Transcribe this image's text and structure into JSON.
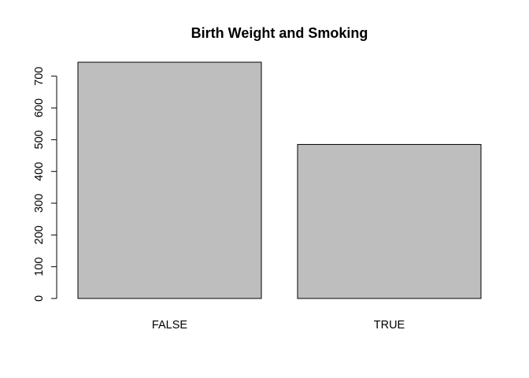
{
  "chart_data": {
    "type": "bar",
    "title": "Birth Weight and Smoking",
    "xlabel": "",
    "ylabel": "",
    "categories": [
      "FALSE",
      "TRUE"
    ],
    "values": [
      744,
      485
    ],
    "ylim": [
      0,
      744
    ],
    "yticks": [
      0,
      100,
      200,
      300,
      400,
      500,
      600,
      700
    ],
    "grid": false,
    "legend": "none",
    "bar_color": "#bebebe",
    "bar_edge_color": "#000000"
  }
}
